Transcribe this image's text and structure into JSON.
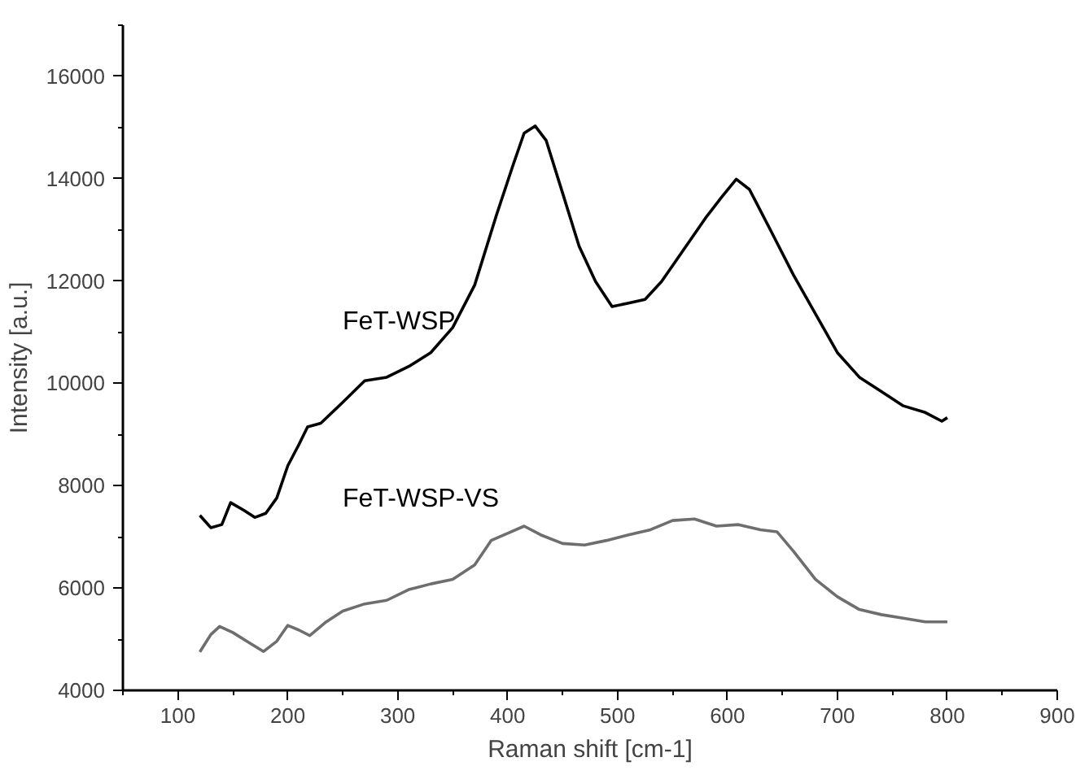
{
  "chart_data": {
    "type": "line",
    "xlabel": "Raman shift [cm-1]",
    "ylabel": "Intensity [a.u.]",
    "xlim": [
      50,
      900
    ],
    "xticks": [
      100,
      200,
      300,
      400,
      500,
      600,
      700,
      800,
      900
    ],
    "ylim": [
      4000,
      17000
    ],
    "yticks": [
      4000,
      6000,
      8000,
      10000,
      12000,
      14000,
      16000
    ],
    "grid": false,
    "legend": false,
    "marker": "none",
    "line_style": "solid",
    "series": [
      {
        "name": "FeT-WSP",
        "color": "#000000",
        "x": [
          120,
          130,
          140,
          148,
          160,
          170,
          180,
          190,
          200,
          210,
          218,
          230,
          250,
          270,
          290,
          310,
          330,
          350,
          370,
          390,
          405,
          415,
          425,
          435,
          450,
          465,
          480,
          495,
          510,
          525,
          540,
          560,
          580,
          595,
          608,
          620,
          640,
          660,
          680,
          700,
          720,
          740,
          760,
          780,
          795,
          800
        ],
        "values": [
          7420,
          7180,
          7240,
          7670,
          7520,
          7380,
          7460,
          7760,
          8390,
          8800,
          9150,
          9220,
          9630,
          10050,
          10120,
          10330,
          10600,
          11090,
          11920,
          13300,
          14270,
          14890,
          15030,
          14750,
          13720,
          12680,
          11990,
          11500,
          11570,
          11640,
          11990,
          12610,
          13230,
          13650,
          13990,
          13790,
          12960,
          12120,
          11360,
          10600,
          10120,
          9840,
          9560,
          9430,
          9260,
          9330
        ]
      },
      {
        "name": "FeT-WSP-VS",
        "color": "#6e6e6e",
        "x": [
          120,
          130,
          138,
          150,
          165,
          178,
          190,
          200,
          210,
          220,
          235,
          250,
          270,
          290,
          310,
          330,
          350,
          370,
          385,
          400,
          415,
          430,
          450,
          470,
          490,
          510,
          530,
          550,
          570,
          590,
          610,
          630,
          645,
          660,
          680,
          700,
          720,
          740,
          760,
          780,
          800
        ],
        "values": [
          4750,
          5090,
          5250,
          5130,
          4930,
          4760,
          4960,
          5270,
          5180,
          5070,
          5340,
          5550,
          5690,
          5760,
          5970,
          6080,
          6170,
          6450,
          6930,
          7070,
          7210,
          7040,
          6870,
          6840,
          6930,
          7040,
          7140,
          7320,
          7350,
          7210,
          7240,
          7140,
          7100,
          6720,
          6170,
          5830,
          5580,
          5480,
          5410,
          5340,
          5340
        ]
      }
    ]
  }
}
